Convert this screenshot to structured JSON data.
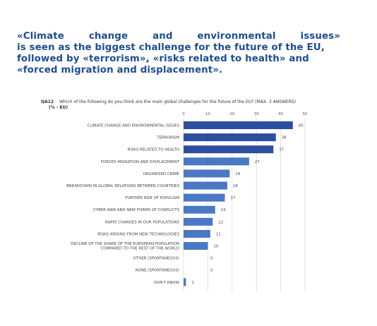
{
  "headline": {
    "line1": "«Climate change and environmental issues»",
    "line2": "is seen as the biggest challenge for the future of the EU,",
    "line3": "followed by «terrorism», «risks related to health» and",
    "line4": "«forced migration and displacement»."
  },
  "question": {
    "code": "QA12",
    "text": "Which of the following do you think are the main global challenges for the future of the EU? (MAX. 3 ANSWERS)",
    "unit": "(% - EU)"
  },
  "colors": {
    "headline": "#1f4e8c",
    "bar_dark": "#2e4f9e",
    "bar_light": "#4a78c2",
    "gridline": "#cfcfcf"
  },
  "chart_data": {
    "type": "bar",
    "orientation": "horizontal",
    "xlim": [
      0,
      50
    ],
    "xticks": [
      0,
      10,
      20,
      30,
      40,
      50
    ],
    "grid": true,
    "categories": [
      [
        "CLIMATE CHANGE AND ENVIRONMENTAL ISSUES"
      ],
      [
        "TERRORISM"
      ],
      [
        "RISKS RELATED TO HEALTH"
      ],
      [
        "FORCED MIGRATION AND DISPLACEMENT"
      ],
      [
        "ORGANISED CRIME"
      ],
      [
        "BREAKDOWN IN GLOBAL RELATIONS BETWEEN COUNTRIES"
      ],
      [
        "FURTHER RISE OF POPULISM"
      ],
      [
        "CYBER WAR AND NEW FORMS OF CONFLICTS"
      ],
      [
        "RAPID CHANGES IN OUR POPULATIONS"
      ],
      [
        "RISKS ARISING FROM NEW TECHNOLOGIES"
      ],
      [
        "DECLINE OF THE SHARE OF THE EUROPEAN POPULATION",
        "COMPARED TO THE REST OF THE WORLD"
      ],
      [
        "OTHER (SPONTANEOUS)"
      ],
      [
        "NONE (SPONTANEOUS)"
      ],
      [
        "DON'T KNOW"
      ]
    ],
    "values": [
      45,
      38,
      37,
      27,
      19,
      18,
      17,
      13,
      12,
      11,
      10,
      0,
      0,
      1
    ]
  }
}
